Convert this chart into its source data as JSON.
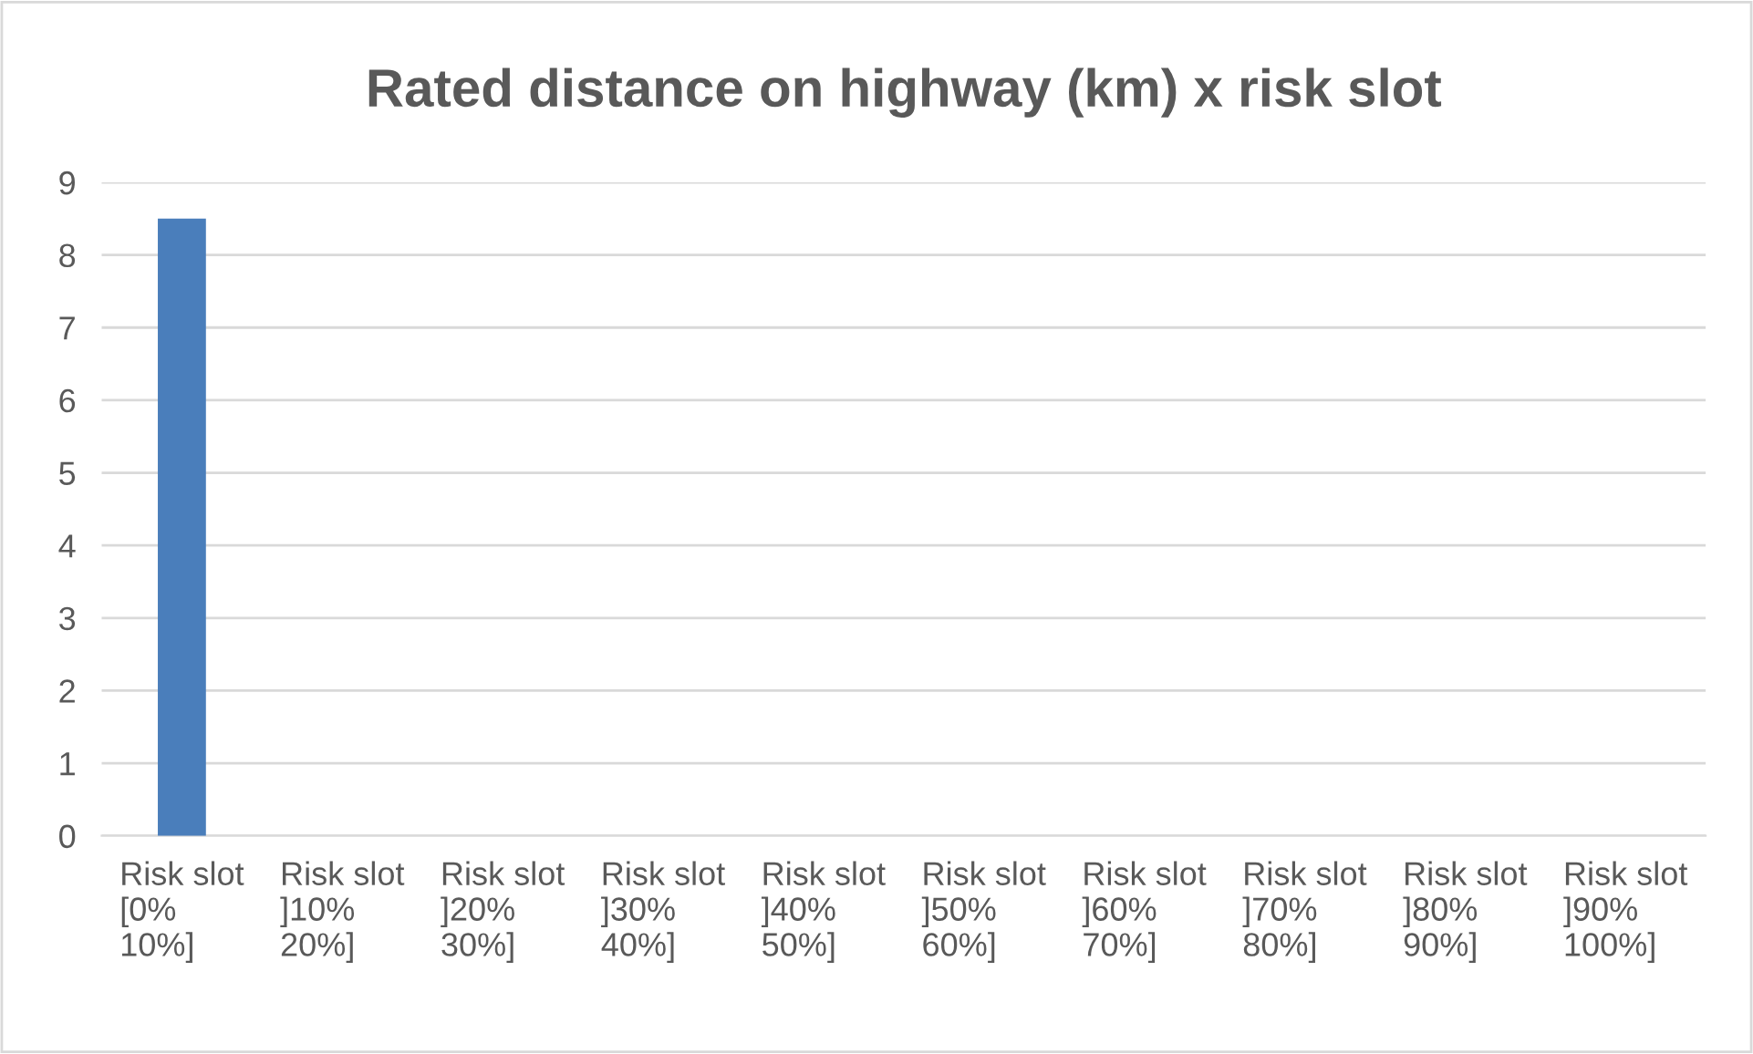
{
  "chart_data": {
    "type": "bar",
    "title": "Rated distance on highway (km) x risk slot",
    "categories": [
      "Risk slot\n[0%\n10%]",
      "Risk slot\n]10%\n20%]",
      "Risk slot\n]20%\n30%]",
      "Risk slot\n]30%\n40%]",
      "Risk slot\n]40%\n50%]",
      "Risk slot\n]50%\n60%]",
      "Risk slot\n]60%\n70%]",
      "Risk slot\n]70%\n80%]",
      "Risk slot\n]80%\n90%]",
      "Risk slot\n]90%\n100%]"
    ],
    "values": [
      8.5,
      0,
      0,
      0,
      0,
      0,
      0,
      0,
      0,
      0
    ],
    "color": "#4a7ebb",
    "ylim": [
      0,
      9
    ],
    "yticks": [
      0,
      1,
      2,
      3,
      4,
      5,
      6,
      7,
      8,
      9
    ],
    "grid": "y"
  }
}
